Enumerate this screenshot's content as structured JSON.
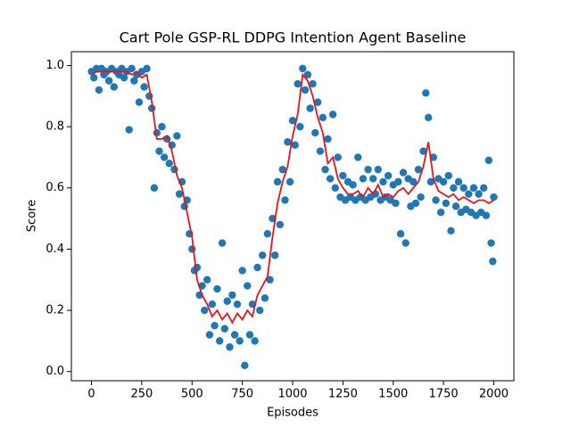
{
  "chart_data": {
    "type": "scatter",
    "title": "Cart Pole GSP-RL DDPG Intention Agent Baseline",
    "x_label": "Episodes",
    "y_label": "Score",
    "xlim": [
      -100,
      2100
    ],
    "ylim": [
      -0.03,
      1.045
    ],
    "xticks": [
      0,
      250,
      500,
      750,
      1000,
      1250,
      1500,
      1750,
      2000
    ],
    "yticks": [
      {
        "value": 0,
        "label": "0.0"
      },
      0.2,
      0.4,
      0.6,
      0.8,
      {
        "value": 1,
        "label": "1.0"
      }
    ],
    "series": [
      {
        "mode": "markers",
        "color": "#1f77b4",
        "x": [
          0,
          12,
          25,
          37,
          50,
          62,
          75,
          87,
          100,
          112,
          125,
          137,
          150,
          162,
          175,
          187,
          200,
          212,
          225,
          237,
          250,
          262,
          275,
          287,
          300,
          312,
          325,
          337,
          350,
          362,
          375,
          387,
          400,
          412,
          425,
          437,
          450,
          462,
          475,
          487,
          500,
          512,
          525,
          537,
          550,
          562,
          575,
          587,
          600,
          612,
          625,
          637,
          650,
          662,
          675,
          687,
          700,
          712,
          725,
          737,
          750,
          762,
          775,
          787,
          800,
          812,
          825,
          837,
          850,
          862,
          875,
          887,
          900,
          912,
          925,
          937,
          950,
          962,
          975,
          987,
          1000,
          1012,
          1025,
          1037,
          1050,
          1062,
          1075,
          1087,
          1100,
          1112,
          1125,
          1137,
          1150,
          1162,
          1175,
          1187,
          1200,
          1212,
          1225,
          1237,
          1250,
          1262,
          1275,
          1287,
          1300,
          1312,
          1325,
          1337,
          1350,
          1362,
          1375,
          1387,
          1400,
          1412,
          1425,
          1437,
          1450,
          1462,
          1475,
          1487,
          1500,
          1512,
          1525,
          1537,
          1550,
          1562,
          1575,
          1587,
          1600,
          1612,
          1625,
          1637,
          1650,
          1662,
          1675,
          1687,
          1700,
          1712,
          1725,
          1737,
          1750,
          1762,
          1775,
          1787,
          1800,
          1812,
          1825,
          1837,
          1850,
          1862,
          1875,
          1887,
          1900,
          1912,
          1925,
          1937,
          1950,
          1962,
          1975,
          1987,
          2000,
          1995
        ],
        "values": [
          0.98,
          0.96,
          0.99,
          0.92,
          0.99,
          0.97,
          0.98,
          0.95,
          0.99,
          0.93,
          0.98,
          0.97,
          0.99,
          0.96,
          0.98,
          0.79,
          0.99,
          0.95,
          0.97,
          0.88,
          0.98,
          0.93,
          0.99,
          0.9,
          0.86,
          0.6,
          0.78,
          0.72,
          0.8,
          0.7,
          0.76,
          0.68,
          0.74,
          0.66,
          0.77,
          0.58,
          0.62,
          0.54,
          0.56,
          0.45,
          0.4,
          0.33,
          0.34,
          0.25,
          0.28,
          0.2,
          0.3,
          0.12,
          0.22,
          0.15,
          0.27,
          0.1,
          0.42,
          0.14,
          0.23,
          0.08,
          0.25,
          0.12,
          0.22,
          0.1,
          0.33,
          0.02,
          0.28,
          0.12,
          0.22,
          0.1,
          0.34,
          0.2,
          0.38,
          0.24,
          0.45,
          0.3,
          0.5,
          0.38,
          0.62,
          0.48,
          0.66,
          0.56,
          0.75,
          0.62,
          0.82,
          0.74,
          0.94,
          0.8,
          0.99,
          0.92,
          0.97,
          0.86,
          0.94,
          0.78,
          0.88,
          0.72,
          0.83,
          0.66,
          0.76,
          0.63,
          0.84,
          0.6,
          0.7,
          0.57,
          0.64,
          0.56,
          0.62,
          0.57,
          0.61,
          0.56,
          0.7,
          0.57,
          0.63,
          0.56,
          0.66,
          0.57,
          0.63,
          0.58,
          0.66,
          0.56,
          0.62,
          0.57,
          0.64,
          0.56,
          0.61,
          0.55,
          0.62,
          0.45,
          0.65,
          0.42,
          0.63,
          0.54,
          0.62,
          0.55,
          0.66,
          0.57,
          0.72,
          0.91,
          0.83,
          0.62,
          0.7,
          0.56,
          0.63,
          0.52,
          0.62,
          0.55,
          0.64,
          0.46,
          0.6,
          0.54,
          0.62,
          0.52,
          0.6,
          0.53,
          0.58,
          0.52,
          0.6,
          0.51,
          0.58,
          0.52,
          0.6,
          0.51,
          0.69,
          0.42,
          0.57,
          0.36
        ]
      },
      {
        "mode": "lines",
        "color": "#e8141c",
        "x": [
          0,
          25,
          50,
          75,
          100,
          125,
          150,
          175,
          200,
          225,
          250,
          275,
          300,
          325,
          350,
          375,
          400,
          425,
          450,
          475,
          500,
          525,
          550,
          575,
          600,
          625,
          650,
          675,
          700,
          725,
          750,
          775,
          800,
          825,
          850,
          875,
          900,
          925,
          950,
          975,
          1000,
          1025,
          1050,
          1075,
          1100,
          1125,
          1150,
          1175,
          1200,
          1225,
          1250,
          1275,
          1300,
          1325,
          1350,
          1375,
          1400,
          1425,
          1450,
          1475,
          1500,
          1525,
          1550,
          1575,
          1600,
          1625,
          1650,
          1675,
          1700,
          1725,
          1750,
          1775,
          1800,
          1825,
          1850,
          1875,
          1900,
          1925,
          1950,
          1975,
          2000
        ],
        "values": [
          0.97,
          0.98,
          0.98,
          0.98,
          0.98,
          0.98,
          0.98,
          0.98,
          0.97,
          0.98,
          0.96,
          0.97,
          0.88,
          0.76,
          0.76,
          0.77,
          0.72,
          0.64,
          0.6,
          0.52,
          0.44,
          0.3,
          0.25,
          0.22,
          0.18,
          0.2,
          0.17,
          0.19,
          0.16,
          0.19,
          0.17,
          0.2,
          0.18,
          0.25,
          0.28,
          0.31,
          0.44,
          0.55,
          0.62,
          0.67,
          0.77,
          0.84,
          0.97,
          0.95,
          0.9,
          0.83,
          0.78,
          0.68,
          0.7,
          0.63,
          0.6,
          0.58,
          0.58,
          0.59,
          0.57,
          0.6,
          0.58,
          0.61,
          0.57,
          0.58,
          0.57,
          0.59,
          0.6,
          0.58,
          0.6,
          0.62,
          0.67,
          0.75,
          0.63,
          0.59,
          0.58,
          0.57,
          0.58,
          0.56,
          0.57,
          0.56,
          0.55,
          0.56,
          0.56,
          0.55,
          0.56
        ]
      }
    ]
  }
}
